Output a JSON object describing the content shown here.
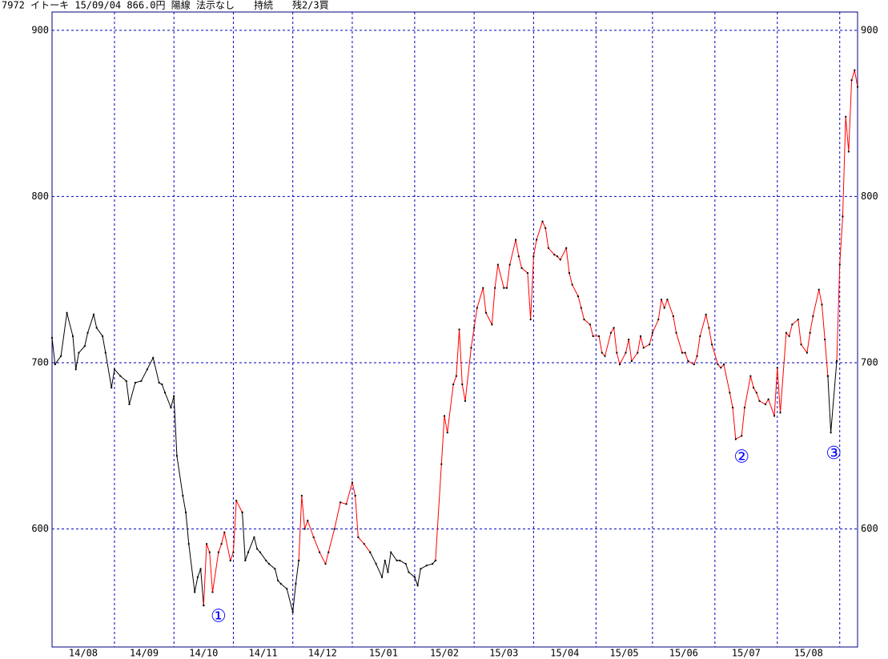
{
  "chart_data": {
    "type": "line",
    "title": "7972 イトーキ 15/09/04 866.0円 陽線 法示なし　　持続　　残2/3買",
    "xlim": [
      0,
      271
    ],
    "ylim": [
      529,
      911
    ],
    "yticks": [
      600,
      700,
      800,
      900
    ],
    "grid": true,
    "month_lines": [
      21,
      41,
      61,
      81,
      101,
      122,
      142,
      162,
      183,
      202,
      223,
      244,
      265
    ],
    "month_labels": [
      "14/08",
      "14/09",
      "14/10",
      "14/11",
      "14/12",
      "15/01",
      "15/02",
      "15/03",
      "15/04",
      "15/05",
      "15/06",
      "15/07",
      "15/08"
    ],
    "point_color": "#000000",
    "series": [
      {
        "color": "#000000",
        "x": [
          0,
          1,
          3,
          5,
          7,
          8,
          9,
          11,
          12,
          14,
          15,
          17,
          18,
          20,
          21,
          23,
          25,
          26,
          28,
          30,
          32,
          34,
          36,
          37,
          38,
          40,
          41,
          42,
          44,
          45,
          46,
          48,
          49,
          50,
          51
        ],
        "values": [
          715,
          699,
          704,
          730,
          716,
          696,
          706,
          710,
          718,
          729,
          721,
          716,
          706,
          685,
          696,
          692,
          689,
          675,
          688,
          689,
          696,
          703,
          688,
          687,
          682,
          673,
          680,
          644,
          620,
          610,
          591,
          562,
          571,
          576,
          554
        ]
      },
      {
        "color": "#ff0000",
        "x": [
          51,
          52,
          53,
          54,
          56,
          57,
          58,
          60,
          61,
          62,
          64
        ],
        "values": [
          554,
          591,
          586,
          562,
          586,
          591,
          598,
          581,
          586,
          617,
          610
        ]
      },
      {
        "color": "#000000",
        "x": [
          64,
          65,
          66,
          68,
          69,
          70,
          72,
          73,
          75,
          76,
          77,
          79,
          81,
          82,
          83
        ],
        "values": [
          610,
          581,
          586,
          595,
          588,
          586,
          581,
          579,
          576,
          569,
          567,
          564,
          550,
          567,
          581
        ]
      },
      {
        "color": "#ff0000",
        "x": [
          83,
          84,
          85,
          86,
          88,
          90,
          92,
          93,
          95,
          97,
          99,
          101,
          102,
          103,
          105,
          107
        ],
        "values": [
          581,
          620,
          600,
          605,
          595,
          586,
          579,
          586,
          600,
          616,
          615,
          628,
          620,
          595,
          591,
          586
        ]
      },
      {
        "color": "#000000",
        "x": [
          107,
          109,
          111,
          112,
          113,
          114,
          116,
          117,
          119,
          120,
          122,
          123,
          124,
          126,
          128,
          129
        ],
        "values": [
          586,
          579,
          571,
          581,
          574,
          586,
          581,
          581,
          579,
          574,
          571,
          566,
          576,
          578,
          579,
          581
        ]
      },
      {
        "color": "#ff0000",
        "x": [
          129,
          131,
          132,
          133,
          135,
          136,
          137,
          138,
          139,
          141,
          142,
          143,
          145,
          146,
          148,
          149,
          150,
          152,
          153,
          154,
          156,
          157,
          158,
          160,
          161,
          162,
          163,
          165,
          166,
          167,
          169,
          170,
          171,
          173,
          174,
          175,
          177,
          178,
          179,
          181,
          182,
          184,
          185,
          186,
          188,
          189,
          190,
          191,
          193,
          194,
          195,
          197,
          198,
          199,
          201,
          202,
          204,
          205,
          206,
          207,
          209,
          210,
          212,
          213,
          214,
          216,
          217,
          218,
          220,
          221,
          222,
          224,
          225,
          226,
          228,
          229,
          230,
          232,
          233,
          235,
          236,
          237,
          238,
          240,
          241,
          243,
          244,
          245,
          247,
          248,
          249,
          251,
          252,
          254,
          255,
          256,
          258,
          259,
          260,
          261
        ],
        "values": [
          581,
          639,
          668,
          658,
          687,
          692,
          720,
          687,
          677,
          709,
          721,
          733,
          745,
          730,
          723,
          745,
          759,
          745,
          745,
          759,
          774,
          764,
          757,
          754,
          726,
          764,
          774,
          785,
          781,
          769,
          765,
          764,
          762,
          769,
          754,
          747,
          740,
          733,
          726,
          723,
          716,
          716,
          706,
          704,
          718,
          721,
          706,
          699,
          706,
          714,
          701,
          706,
          716,
          709,
          711,
          718,
          726,
          738,
          733,
          738,
          728,
          718,
          706,
          706,
          701,
          699,
          704,
          716,
          729,
          721,
          711,
          699,
          697,
          699,
          682,
          673,
          654,
          656,
          673,
          692,
          685,
          682,
          677,
          675,
          678,
          668,
          697,
          670,
          718,
          716,
          723,
          726,
          711,
          706,
          718,
          728,
          744,
          735,
          714,
          692
        ]
      },
      {
        "color": "#000000",
        "x": [
          261,
          262,
          264
        ],
        "values": [
          692,
          658,
          701
        ]
      },
      {
        "color": "#ff0000",
        "x": [
          264,
          265,
          266,
          267,
          268,
          269,
          270,
          271
        ],
        "values": [
          701,
          759,
          788,
          848,
          827,
          870,
          876,
          866
        ]
      }
    ],
    "annotations": [
      {
        "text": "①",
        "x": 56,
        "y": 547
      },
      {
        "text": "②",
        "x": 232,
        "y": 643
      },
      {
        "text": "③",
        "x": 263,
        "y": 645
      }
    ]
  }
}
